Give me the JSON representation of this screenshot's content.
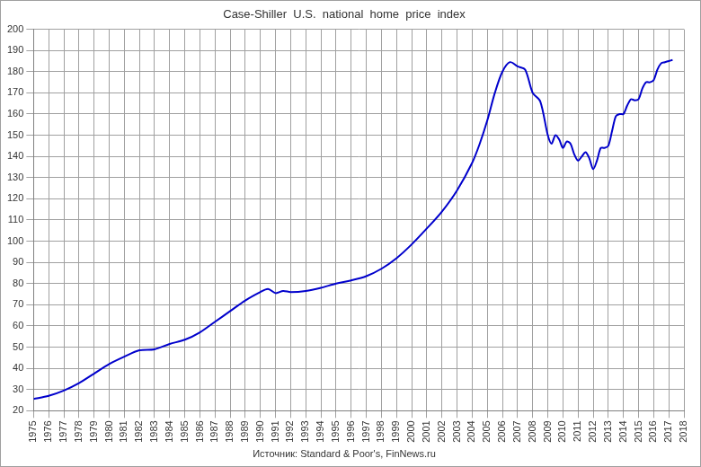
{
  "chart_data": {
    "type": "line",
    "title": "Case-Shiller  U.S.  national  home  price  index",
    "subtitle": "Источник: Standard & Poor's, FinNews.ru",
    "x": [
      1975,
      1976,
      1977,
      1978,
      1979,
      1980,
      1981,
      1982,
      1983,
      1984,
      1985,
      1986,
      1987,
      1988,
      1989,
      1990,
      1990.5,
      1991,
      1991.5,
      1992,
      1993,
      1994,
      1995,
      1996,
      1997,
      1998,
      1999,
      2000,
      2001,
      2002,
      2003,
      2004,
      2004.5,
      2005,
      2005.5,
      2006,
      2006.5,
      2007,
      2007.5,
      2008,
      2008.5,
      2009,
      2009.25,
      2009.5,
      2009.75,
      2010,
      2010.25,
      2010.5,
      2010.75,
      2011,
      2011.25,
      2011.5,
      2011.75,
      2012,
      2012.25,
      2012.5,
      2012.75,
      2013,
      2013.25,
      2013.5,
      2013.75,
      2014,
      2014.25,
      2014.5,
      2014.75,
      2015,
      2015.25,
      2015.5,
      2015.75,
      2016,
      2016.25,
      2016.5,
      2016.75,
      2017,
      2017.25
    ],
    "series": [
      {
        "name": "Case-Shiller U.S. national home price index",
        "color": "#0000cc",
        "values": [
          25.5,
          27,
          29.5,
          33,
          37.5,
          42,
          45.5,
          48.5,
          49,
          51.5,
          53.5,
          57,
          62,
          67,
          72,
          76,
          77.5,
          75.5,
          76.5,
          76,
          76.5,
          78,
          80,
          81.5,
          83.5,
          87,
          92,
          98.5,
          106,
          114,
          124,
          137,
          146,
          157,
          170,
          180,
          184.5,
          182.5,
          181,
          170,
          166,
          150,
          146,
          150,
          148,
          144,
          147,
          146,
          141,
          138,
          140,
          142,
          139,
          134,
          138,
          144,
          144,
          145,
          152,
          159,
          160,
          160,
          164,
          167,
          166.5,
          167,
          172,
          175,
          175,
          176,
          181,
          184,
          184.5,
          185,
          185.5
        ]
      }
    ],
    "xlim": [
      1975,
      2018
    ],
    "xticks": [
      1975,
      1976,
      1977,
      1978,
      1979,
      1980,
      1981,
      1982,
      1983,
      1984,
      1985,
      1986,
      1987,
      1988,
      1989,
      1990,
      1991,
      1992,
      1993,
      1994,
      1995,
      1996,
      1997,
      1998,
      1999,
      2000,
      2001,
      2002,
      2003,
      2004,
      2005,
      2006,
      2007,
      2008,
      2009,
      2010,
      2011,
      2012,
      2013,
      2014,
      2015,
      2016,
      2017,
      2018
    ],
    "ylim": [
      20,
      200
    ],
    "yticks": [
      20,
      30,
      40,
      50,
      60,
      70,
      80,
      90,
      100,
      110,
      120,
      130,
      140,
      150,
      160,
      170,
      180,
      190,
      200
    ],
    "grid": true
  }
}
